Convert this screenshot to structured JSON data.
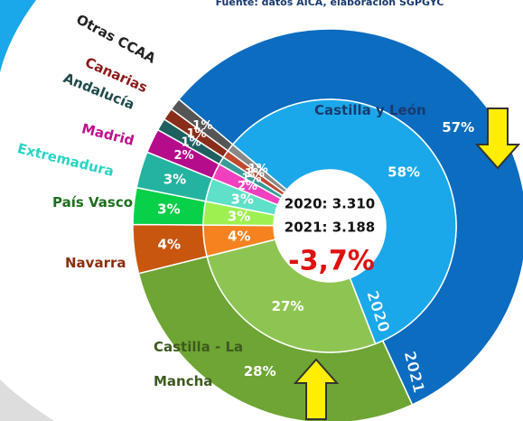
{
  "chart_data": {
    "type": "donut",
    "source": "Fuente: datos AICA, elaboración SGPGYC",
    "categories": [
      "Castilla y León",
      "Castilla - La Mancha",
      "Navarra",
      "País Vasco",
      "Extremadura",
      "Madrid",
      "Andalucía",
      "Canarias",
      "Otras CCAA"
    ],
    "category_colors": [
      "#1a3a6e",
      "#3d5a1e",
      "#8b2e0e",
      "#1f6e1f",
      "#2ad4c4",
      "#c0108e",
      "#1e4a4a",
      "#8b1a1a",
      "#222222"
    ],
    "series": [
      {
        "name": "2021",
        "values": [
          57,
          28,
          4,
          3,
          3,
          2,
          1,
          1,
          1
        ],
        "value_labels": [
          "57%",
          "28%",
          "4%",
          "3%",
          "3%",
          "2%",
          "1%",
          "1%",
          "1%"
        ],
        "colors": [
          "#0b6cc0",
          "#6ea534",
          "#c8560f",
          "#08d048",
          "#24b3a0",
          "#b50c8c",
          "#1e6060",
          "#8a2c1a",
          "#555555"
        ]
      },
      {
        "name": "2020",
        "values": [
          58,
          27,
          4,
          3,
          3,
          2,
          1,
          1,
          1
        ],
        "value_labels": [
          "58%",
          "27%",
          "4%",
          "3%",
          "3%",
          "2%",
          "1%",
          "1%",
          "1%"
        ],
        "colors": [
          "#1aa8ea",
          "#8ec552",
          "#f5821f",
          "#9ef050",
          "#5fe0c8",
          "#f040c0",
          "#3a9a9a",
          "#c04a30",
          "#888888"
        ]
      }
    ],
    "center_labels": [
      "2020: 3.310",
      "2021: 3.188"
    ],
    "change": "-3,7%"
  }
}
